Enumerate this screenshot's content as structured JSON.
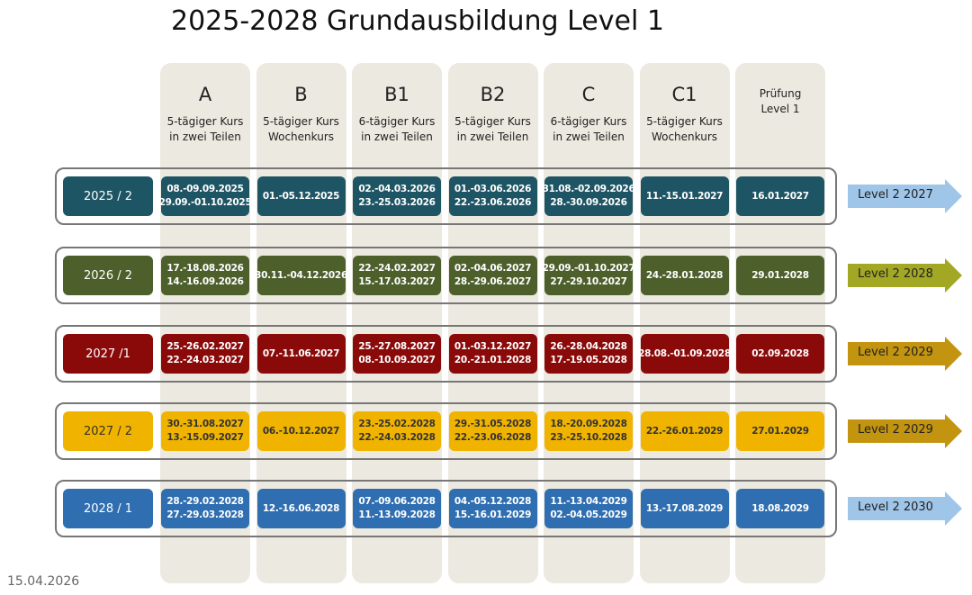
{
  "title": "2025-2028 Grundausbildung Level 1",
  "columns": [
    {
      "letter": "A",
      "desc": [
        "5-tägiger Kurs",
        "in zwei Teilen"
      ]
    },
    {
      "letter": "B",
      "desc": [
        "5-tägiger Kurs",
        "Wochenkurs"
      ]
    },
    {
      "letter": "B1",
      "desc": [
        "6-tägiger Kurs",
        "in zwei Teilen"
      ]
    },
    {
      "letter": "B2",
      "desc": [
        "5-tägiger Kurs",
        "in zwei Teilen"
      ]
    },
    {
      "letter": "C",
      "desc": [
        "6-tägiger Kurs",
        "in zwei Teilen"
      ]
    },
    {
      "letter": "C1",
      "desc": [
        "5-tägiger Kurs",
        "Wochenkurs"
      ]
    },
    {
      "desc": [
        "Prüfung",
        "Level 1"
      ]
    }
  ],
  "rows": [
    {
      "label": "2025 / 2",
      "cells": [
        [
          "08.-09.09.2025",
          "29.09.-01.10.2025"
        ],
        [
          "01.-05.12.2025"
        ],
        [
          "02.-04.03.2026",
          "23.-25.03.2026"
        ],
        [
          "01.-03.06.2026",
          "22.-23.06.2026"
        ],
        [
          "31.08.-02.09.2026",
          "28.-30.09.2026"
        ],
        [
          "11.-15.01.2027"
        ],
        [
          "16.01.2027"
        ]
      ],
      "next": "Level 2 2027"
    },
    {
      "label": "2026 / 2",
      "cells": [
        [
          "17.-18.08.2026",
          "14.-16.09.2026"
        ],
        [
          "30.11.-04.12.2026"
        ],
        [
          "22.-24.02.2027",
          "15.-17.03.2027"
        ],
        [
          "02.-04.06.2027",
          "28.-29.06.2027"
        ],
        [
          "29.09.-01.10.2027",
          "27.-29.10.2027"
        ],
        [
          "24.-28.01.2028"
        ],
        [
          "29.01.2028"
        ]
      ],
      "next": "Level 2 2028"
    },
    {
      "label": "2027 /1",
      "cells": [
        [
          "25.-26.02.2027",
          "22.-24.03.2027"
        ],
        [
          "07.-11.06.2027"
        ],
        [
          "25.-27.08.2027",
          "08.-10.09.2027"
        ],
        [
          "01.-03.12.2027",
          "20.-21.01.2028"
        ],
        [
          "26.-28.04.2028",
          "17.-19.05.2028"
        ],
        [
          "28.08.-01.09.2028"
        ],
        [
          "02.09.2028"
        ]
      ],
      "next": "Level 2 2029"
    },
    {
      "label": "2027 / 2",
      "cells": [
        [
          "30.-31.08.2027",
          "13.-15.09.2027"
        ],
        [
          "06.-10.12.2027"
        ],
        [
          "23.-25.02.2028",
          "22.-24.03.2028"
        ],
        [
          "29.-31.05.2028",
          "22.-23.06.2028"
        ],
        [
          "18.-20.09.2028",
          "23.-25.10.2028"
        ],
        [
          "22.-26.01.2029"
        ],
        [
          "27.01.2029"
        ]
      ],
      "next": "Level 2 2029"
    },
    {
      "label": "2028 / 1",
      "cells": [
        [
          "28.-29.02.2028",
          "27.-29.03.2028"
        ],
        [
          "12.-16.06.2028"
        ],
        [
          "07.-09.06.2028",
          "11.-13.09.2028"
        ],
        [
          "04.-05.12.2028",
          "15.-16.01.2029"
        ],
        [
          "11.-13.04.2029",
          "02.-04.05.2029"
        ],
        [
          "13.-17.08.2029"
        ],
        [
          "18.08.2029"
        ]
      ],
      "next": "Level 2 2030"
    }
  ],
  "footer": "15.04.2026"
}
